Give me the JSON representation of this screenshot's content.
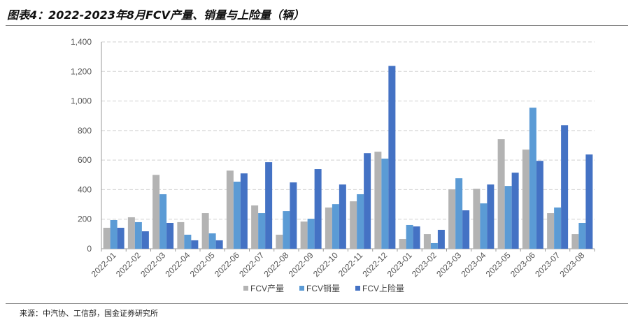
{
  "title": "图表4：2022-2023年8月FCV产量、销量与上险量（辆）",
  "source": "来源：中汽协、工信部，国金证券研究所",
  "chart_data": {
    "type": "bar",
    "title": "图表4：2022-2023年8月FCV产量、销量与上险量（辆）",
    "xlabel": "",
    "ylabel": "",
    "ylim": [
      0,
      1400
    ],
    "yticks": [
      0,
      200,
      400,
      600,
      800,
      1000,
      1200,
      1400
    ],
    "ytick_labels": [
      "0",
      "200",
      "400",
      "600",
      "800",
      "1,000",
      "1,200",
      "1,400"
    ],
    "grid": true,
    "legend": "bottom",
    "categories": [
      "2022-01",
      "2022-02",
      "2022-03",
      "2022-04",
      "2022-05",
      "2022-06",
      "2022-07",
      "2022-08",
      "2022-09",
      "2022-10",
      "2022-11",
      "2022-12",
      "2023-01",
      "2023-02",
      "2023-03",
      "2023-04",
      "2023-05",
      "2023-06",
      "2023-07",
      "2023-08"
    ],
    "series": [
      {
        "name": "FCV产量",
        "color": "#b3b3b3",
        "values": [
          142,
          213,
          500,
          180,
          241,
          529,
          293,
          95,
          184,
          279,
          321,
          657,
          66,
          99,
          402,
          406,
          742,
          671,
          241,
          99
        ]
      },
      {
        "name": "FCV销量",
        "color": "#5b9bd5",
        "values": [
          194,
          180,
          369,
          95,
          104,
          454,
          241,
          255,
          203,
          302,
          369,
          610,
          161,
          38,
          477,
          307,
          425,
          955,
          279,
          175
        ]
      },
      {
        "name": "FCV上险量",
        "color": "#4472c4",
        "values": [
          142,
          118,
          175,
          57,
          57,
          510,
          586,
          449,
          539,
          435,
          647,
          1238,
          151,
          128,
          260,
          435,
          515,
          595,
          836,
          638
        ]
      }
    ]
  }
}
